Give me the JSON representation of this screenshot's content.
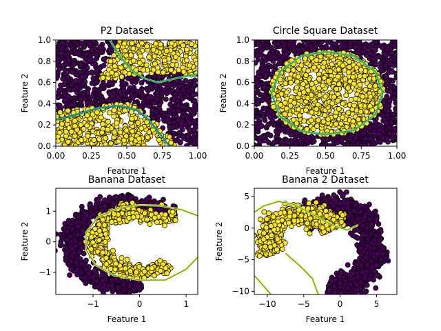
{
  "colors": {
    "class0": "#440154",
    "class1": "#fde725",
    "boundary_mid": "#21918c",
    "boundary_edge": "#5ec962"
  },
  "chart_data": [
    {
      "type": "scatter",
      "title": "P2 Dataset",
      "xlabel": "Feature 1",
      "ylabel": "Feature 2",
      "xlim": [
        0,
        1
      ],
      "ylim": [
        0,
        1
      ],
      "xticks": [
        0.0,
        0.25,
        0.5,
        0.75,
        1.0
      ],
      "xtick_labels": [
        "0.00",
        "0.25",
        "0.50",
        "0.75",
        "1.00"
      ],
      "yticks": [
        0.0,
        0.2,
        0.4,
        0.6,
        0.8,
        1.0
      ],
      "ytick_labels": [
        "0.0",
        "0.2",
        "0.4",
        "0.6",
        "0.8",
        "1.0"
      ],
      "classes": [
        "class0",
        "class1"
      ],
      "decision_boundaries": [
        [
          [
            0.38,
            1.0
          ],
          [
            0.45,
            0.85
          ],
          [
            0.53,
            0.72
          ],
          [
            0.62,
            0.64
          ],
          [
            0.72,
            0.6
          ],
          [
            0.85,
            0.64
          ],
          [
            1.0,
            0.68
          ]
        ],
        [
          [
            0.0,
            0.25
          ],
          [
            0.15,
            0.3
          ],
          [
            0.3,
            0.36
          ],
          [
            0.45,
            0.38
          ],
          [
            0.57,
            0.34
          ],
          [
            0.66,
            0.24
          ],
          [
            0.73,
            0.12
          ],
          [
            0.8,
            0.0
          ]
        ]
      ],
      "boundary_colors": [
        "#5ec962",
        "#21918c"
      ]
    },
    {
      "type": "scatter",
      "title": "Circle Square Dataset",
      "xlabel": "Feature 1",
      "ylabel": "Feature 2",
      "xlim": [
        0,
        1
      ],
      "ylim": [
        0,
        1
      ],
      "xticks": [
        0.0,
        0.25,
        0.5,
        0.75,
        1.0
      ],
      "xtick_labels": [
        "0.00",
        "0.25",
        "0.50",
        "0.75",
        "1.00"
      ],
      "yticks": [
        0.0,
        0.2,
        0.4,
        0.6,
        0.8,
        1.0
      ],
      "ytick_labels": [
        "0.0",
        "0.2",
        "0.4",
        "0.6",
        "0.8",
        "1.0"
      ],
      "classes": [
        "class1",
        "class0"
      ],
      "decision_boundaries": [
        [
          [
            0.12,
            0.5
          ],
          [
            0.18,
            0.7
          ],
          [
            0.33,
            0.85
          ],
          [
            0.5,
            0.89
          ],
          [
            0.7,
            0.85
          ],
          [
            0.85,
            0.7
          ],
          [
            0.9,
            0.5
          ],
          [
            0.85,
            0.3
          ],
          [
            0.7,
            0.15
          ],
          [
            0.5,
            0.11
          ],
          [
            0.33,
            0.14
          ],
          [
            0.18,
            0.28
          ],
          [
            0.12,
            0.5
          ]
        ]
      ],
      "boundary_colors": [
        "#5ec962"
      ]
    },
    {
      "type": "scatter",
      "title": "Banana Dataset",
      "xlabel": "Feature 1",
      "ylabel": "Feature 2",
      "xlim": [
        -1.8,
        1.25
      ],
      "ylim": [
        -1.72,
        1.75
      ],
      "xticks": [
        -1,
        0,
        1
      ],
      "xtick_labels": [
        "−1",
        "0",
        "1"
      ],
      "yticks": [
        -1,
        0,
        1
      ],
      "ytick_labels": [
        "−1",
        "0",
        "1"
      ],
      "classes": [
        "class0",
        "class1"
      ],
      "decision_boundaries": [
        [
          [
            1.25,
            0.85
          ],
          [
            0.9,
            1.05
          ],
          [
            0.45,
            1.18
          ],
          [
            0.0,
            1.2
          ],
          [
            -0.45,
            1.1
          ],
          [
            -0.9,
            0.8
          ],
          [
            -1.15,
            0.3
          ],
          [
            -1.15,
            -0.25
          ],
          [
            -0.95,
            -0.75
          ],
          [
            -0.55,
            -1.1
          ],
          [
            0.0,
            -1.25
          ],
          [
            0.55,
            -1.25
          ],
          [
            1.0,
            -0.9
          ],
          [
            1.25,
            -0.5
          ]
        ]
      ],
      "boundary_colors": [
        "#fde725"
      ]
    },
    {
      "type": "scatter",
      "title": "Banana 2 Dataset",
      "xlabel": "Feature 1",
      "ylabel": "Feature 2",
      "xlim": [
        -11.8,
        7.8
      ],
      "ylim": [
        -10.5,
        6.3
      ],
      "xticks": [
        -10,
        -5,
        0,
        5
      ],
      "xtick_labels": [
        "−10",
        "−5",
        "0",
        "5"
      ],
      "yticks": [
        -10,
        -5,
        0,
        5
      ],
      "ytick_labels": [
        "−10",
        "−5",
        "0",
        "5"
      ],
      "classes": [
        "class0",
        "class1"
      ],
      "decision_boundaries": [
        [
          [
            -11.8,
            2.5
          ],
          [
            -10.5,
            3.5
          ],
          [
            -8.5,
            4.2
          ],
          [
            -6.5,
            3.8
          ],
          [
            -4.8,
            2.8
          ],
          [
            -3.2,
            1.8
          ],
          [
            -2.0,
            1.0
          ],
          [
            -0.5,
            0.2
          ],
          [
            1.0,
            -0.3
          ],
          [
            2.5,
            0.5
          ]
        ],
        [
          [
            -7.5,
            -4.0
          ],
          [
            -5.5,
            -6.0
          ],
          [
            -3.8,
            -8.0
          ],
          [
            -3.0,
            -10.5
          ]
        ],
        [
          [
            -11.8,
            -7.5
          ],
          [
            -10.8,
            -8.8
          ],
          [
            -9.5,
            -10.5
          ]
        ]
      ],
      "boundary_colors": [
        "#fde725",
        "#fde725",
        "#fde725"
      ]
    }
  ]
}
